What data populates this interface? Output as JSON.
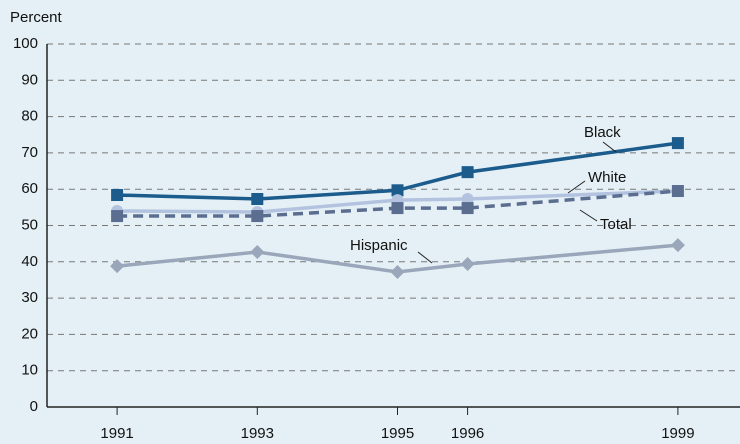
{
  "chart_data": {
    "type": "line",
    "y_axis_label": "Percent",
    "x": [
      1991,
      1993,
      1995,
      1996,
      1999
    ],
    "xlim": [
      1990,
      2000
    ],
    "xticks": [
      1991,
      1993,
      1995,
      1996,
      1999
    ],
    "ylim": [
      0,
      100
    ],
    "yticks": [
      0,
      10,
      20,
      30,
      40,
      50,
      60,
      70,
      80,
      90,
      100
    ],
    "grid": true,
    "series": [
      {
        "name": "Black",
        "color": "#1b5c8c",
        "marker": "square",
        "dashed": false,
        "values": [
          58.4,
          57.3,
          59.7,
          64.7,
          72.7
        ]
      },
      {
        "name": "White",
        "color": "#b3c3df",
        "marker": "circle",
        "dashed": false,
        "values": [
          54,
          53.7,
          57,
          57.3,
          59.5
        ]
      },
      {
        "name": "Total",
        "color": "#5b6e90",
        "marker": "square",
        "dashed": true,
        "values": [
          52.6,
          52.6,
          54.8,
          54.8,
          59.5
        ]
      },
      {
        "name": "Hispanic",
        "color": "#9aa6ba",
        "marker": "diamond",
        "dashed": false,
        "values": [
          38.8,
          42.7,
          37.2,
          39.4,
          44.6
        ]
      }
    ]
  }
}
